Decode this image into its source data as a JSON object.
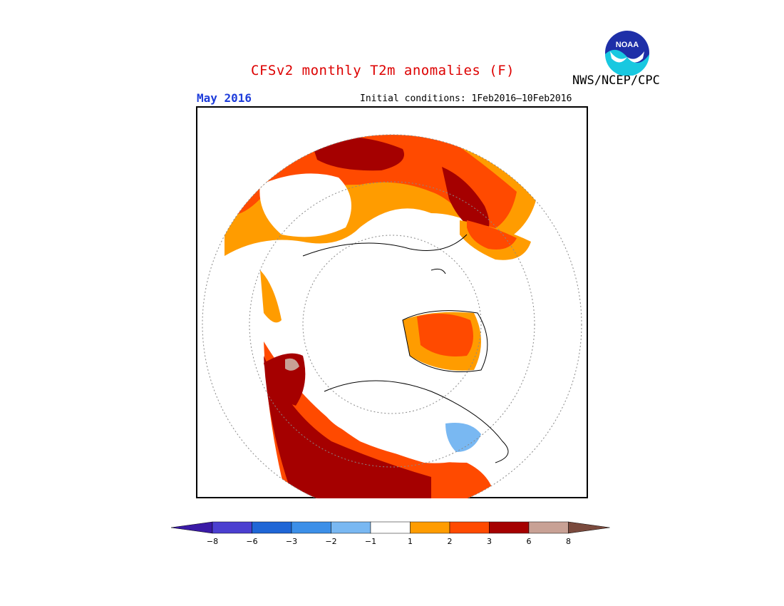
{
  "title": "CFSv2 monthly T2m anomalies (F)",
  "agency": "NWS/NCEP/CPC",
  "logo_text": "NOAA",
  "valid_month": "May 2016",
  "initial_conditions": "Initial conditions: 1Feb2016–10Feb2016",
  "colors": {
    "title": "#dd0000",
    "month": "#1e3ddb",
    "map_background": "#ffffff",
    "coast": "#000000",
    "graticule": "#888888"
  },
  "colorbar": {
    "labels": [
      "-8",
      "-6",
      "-3",
      "-2",
      "-1",
      "1",
      "2",
      "3",
      "6",
      "8"
    ],
    "bins": [
      {
        "color": "#3a1aa6",
        "range": "< -8"
      },
      {
        "color": "#4b3fd0",
        "range": "-8 to -6"
      },
      {
        "color": "#1f66d6",
        "range": "-6 to -3"
      },
      {
        "color": "#3c8fe8",
        "range": "-3 to -2"
      },
      {
        "color": "#79b8f2",
        "range": "-2 to -1"
      },
      {
        "color": "#ffffff",
        "range": "-1 to 1"
      },
      {
        "color": "#ff9c00",
        "range": "1 to 2"
      },
      {
        "color": "#ff4a00",
        "range": "2 to 3"
      },
      {
        "color": "#a50000",
        "range": "3 to 6"
      },
      {
        "color": "#c8a195",
        "range": "6 to 8"
      },
      {
        "color": "#7a4a3d",
        "range": "> 8"
      }
    ]
  },
  "map_regions": [
    {
      "name": "europe-russia",
      "color": "#ff4a00"
    },
    {
      "name": "north-america",
      "color": "#a50000"
    },
    {
      "name": "greenland",
      "color": "#ff4a00"
    },
    {
      "name": "hudson-bay",
      "color": "#79b8f2"
    }
  ]
}
